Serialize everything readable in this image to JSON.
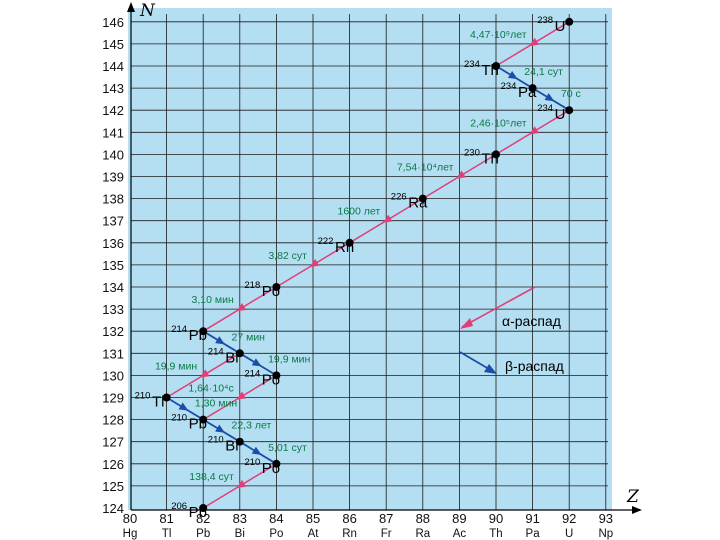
{
  "diagram": {
    "axis_n_title": "N",
    "axis_z_title": "Z",
    "n_ticks": [
      "124",
      "125",
      "126",
      "127",
      "128",
      "129",
      "130",
      "131",
      "132",
      "133",
      "134",
      "135",
      "136",
      "137",
      "138",
      "139",
      "140",
      "141",
      "142",
      "143",
      "144",
      "145",
      "146"
    ],
    "z_ticks": [
      {
        "z": "80",
        "el": "Hg"
      },
      {
        "z": "81",
        "el": "Tl"
      },
      {
        "z": "82",
        "el": "Pb"
      },
      {
        "z": "83",
        "el": "Bi"
      },
      {
        "z": "84",
        "el": "Po"
      },
      {
        "z": "85",
        "el": "At"
      },
      {
        "z": "86",
        "el": "Rn"
      },
      {
        "z": "87",
        "el": "Fr"
      },
      {
        "z": "88",
        "el": "Ra"
      },
      {
        "z": "89",
        "el": "Ac"
      },
      {
        "z": "90",
        "el": "Th"
      },
      {
        "z": "91",
        "el": "Pa"
      },
      {
        "z": "92",
        "el": "U"
      },
      {
        "z": "93",
        "el": "Np"
      }
    ],
    "nuclides": [
      {
        "mass": "238",
        "symbol": "U",
        "z": 92,
        "n": 146
      },
      {
        "mass": "234",
        "symbol": "Th",
        "z": 90,
        "n": 144
      },
      {
        "mass": "234",
        "symbol": "Pa",
        "z": 91,
        "n": 143
      },
      {
        "mass": "234",
        "symbol": "U",
        "z": 92,
        "n": 142
      },
      {
        "mass": "230",
        "symbol": "Th",
        "z": 90,
        "n": 140
      },
      {
        "mass": "226",
        "symbol": "Ra",
        "z": 88,
        "n": 138
      },
      {
        "mass": "222",
        "symbol": "Rn",
        "z": 86,
        "n": 136
      },
      {
        "mass": "218",
        "symbol": "Po",
        "z": 84,
        "n": 134
      },
      {
        "mass": "214",
        "symbol": "Pb",
        "z": 82,
        "n": 132
      },
      {
        "mass": "214",
        "symbol": "Bi",
        "z": 83,
        "n": 131
      },
      {
        "mass": "214",
        "symbol": "Po",
        "z": 84,
        "n": 130
      },
      {
        "mass": "210",
        "symbol": "Tl",
        "z": 81,
        "n": 129
      },
      {
        "mass": "210",
        "symbol": "Pb",
        "z": 82,
        "n": 128
      },
      {
        "mass": "210",
        "symbol": "Bi",
        "z": 83,
        "n": 127
      },
      {
        "mass": "210",
        "symbol": "Po",
        "z": 84,
        "n": 126
      },
      {
        "mass": "206",
        "symbol": "Pb",
        "z": 82,
        "n": 124
      }
    ],
    "decays": [
      {
        "type": "alpha",
        "from": [
          92,
          146
        ],
        "to": [
          90,
          144
        ],
        "half_life": "4,47·10⁹лет"
      },
      {
        "type": "beta",
        "from": [
          90,
          144
        ],
        "to": [
          91,
          143
        ],
        "half_life": "24,1 сут"
      },
      {
        "type": "beta",
        "from": [
          91,
          143
        ],
        "to": [
          92,
          142
        ],
        "half_life": "70 с"
      },
      {
        "type": "alpha",
        "from": [
          92,
          142
        ],
        "to": [
          90,
          140
        ],
        "half_life": "2,46·10⁵лет"
      },
      {
        "type": "alpha",
        "from": [
          90,
          140
        ],
        "to": [
          88,
          138
        ],
        "half_life": "7,54·10⁴лет"
      },
      {
        "type": "alpha",
        "from": [
          88,
          138
        ],
        "to": [
          86,
          136
        ],
        "half_life": "1600 лет"
      },
      {
        "type": "alpha",
        "from": [
          86,
          136
        ],
        "to": [
          84,
          134
        ],
        "half_life": "3,82 сут"
      },
      {
        "type": "alpha",
        "from": [
          84,
          134
        ],
        "to": [
          82,
          132
        ],
        "half_life": "3,10 мин"
      },
      {
        "type": "beta",
        "from": [
          82,
          132
        ],
        "to": [
          83,
          131
        ],
        "half_life": "27 мин"
      },
      {
        "type": "beta",
        "from": [
          83,
          131
        ],
        "to": [
          84,
          130
        ],
        "half_life": "19,9 мин"
      },
      {
        "type": "alpha",
        "from": [
          83,
          131
        ],
        "to": [
          81,
          129
        ],
        "half_life": "19,9 мин"
      },
      {
        "type": "alpha",
        "from": [
          84,
          130
        ],
        "to": [
          82,
          128
        ],
        "half_life": "1,64·10⁴с"
      },
      {
        "type": "beta",
        "from": [
          81,
          129
        ],
        "to": [
          82,
          128
        ],
        "half_life": "1,30 мин"
      },
      {
        "type": "beta",
        "from": [
          82,
          128
        ],
        "to": [
          83,
          127
        ],
        "half_life": "22,3 лет"
      },
      {
        "type": "beta",
        "from": [
          83,
          127
        ],
        "to": [
          84,
          126
        ],
        "half_life": "5,01 сут"
      },
      {
        "type": "alpha",
        "from": [
          84,
          126
        ],
        "to": [
          82,
          124
        ],
        "half_life": "138,4 сут"
      }
    ],
    "legend": {
      "alpha": "α-распад",
      "beta": "β-распад"
    },
    "colors": {
      "background": "#b4def1",
      "alpha": "#e0407a",
      "beta": "#1a4ea8",
      "label": "#0a7a46",
      "node": "#000000"
    }
  }
}
